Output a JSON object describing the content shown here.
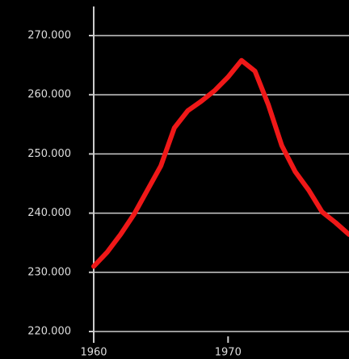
{
  "chart_data": {
    "type": "line",
    "x": [
      1960,
      1961,
      1962,
      1963,
      1964,
      1965,
      1966,
      1967,
      1968,
      1969,
      1970,
      1971,
      1972,
      1973,
      1974,
      1975,
      1976,
      1977,
      1978,
      1979
    ],
    "series": [
      {
        "color": "#f01818",
        "values": [
          231000,
          233400,
          236400,
          239800,
          243900,
          248000,
          254400,
          257300,
          258900,
          260700,
          263000,
          265800,
          264000,
          258300,
          251400,
          247000,
          243900,
          240200,
          238400,
          236400
        ]
      }
    ],
    "xlim": [
      1960,
      1979
    ],
    "xticks": [
      1960,
      1970,
      1980
    ],
    "ylim": [
      220000,
      270000
    ],
    "yticks": [
      {
        "value": 220000,
        "label": "220.000"
      },
      {
        "value": 230000,
        "label": "230.000"
      },
      {
        "value": 240000,
        "label": "240.000"
      },
      {
        "value": 250000,
        "label": "250.000"
      },
      {
        "value": 260000,
        "label": "260.000"
      },
      {
        "value": 270000,
        "label": "270.000"
      }
    ],
    "grid": true
  }
}
